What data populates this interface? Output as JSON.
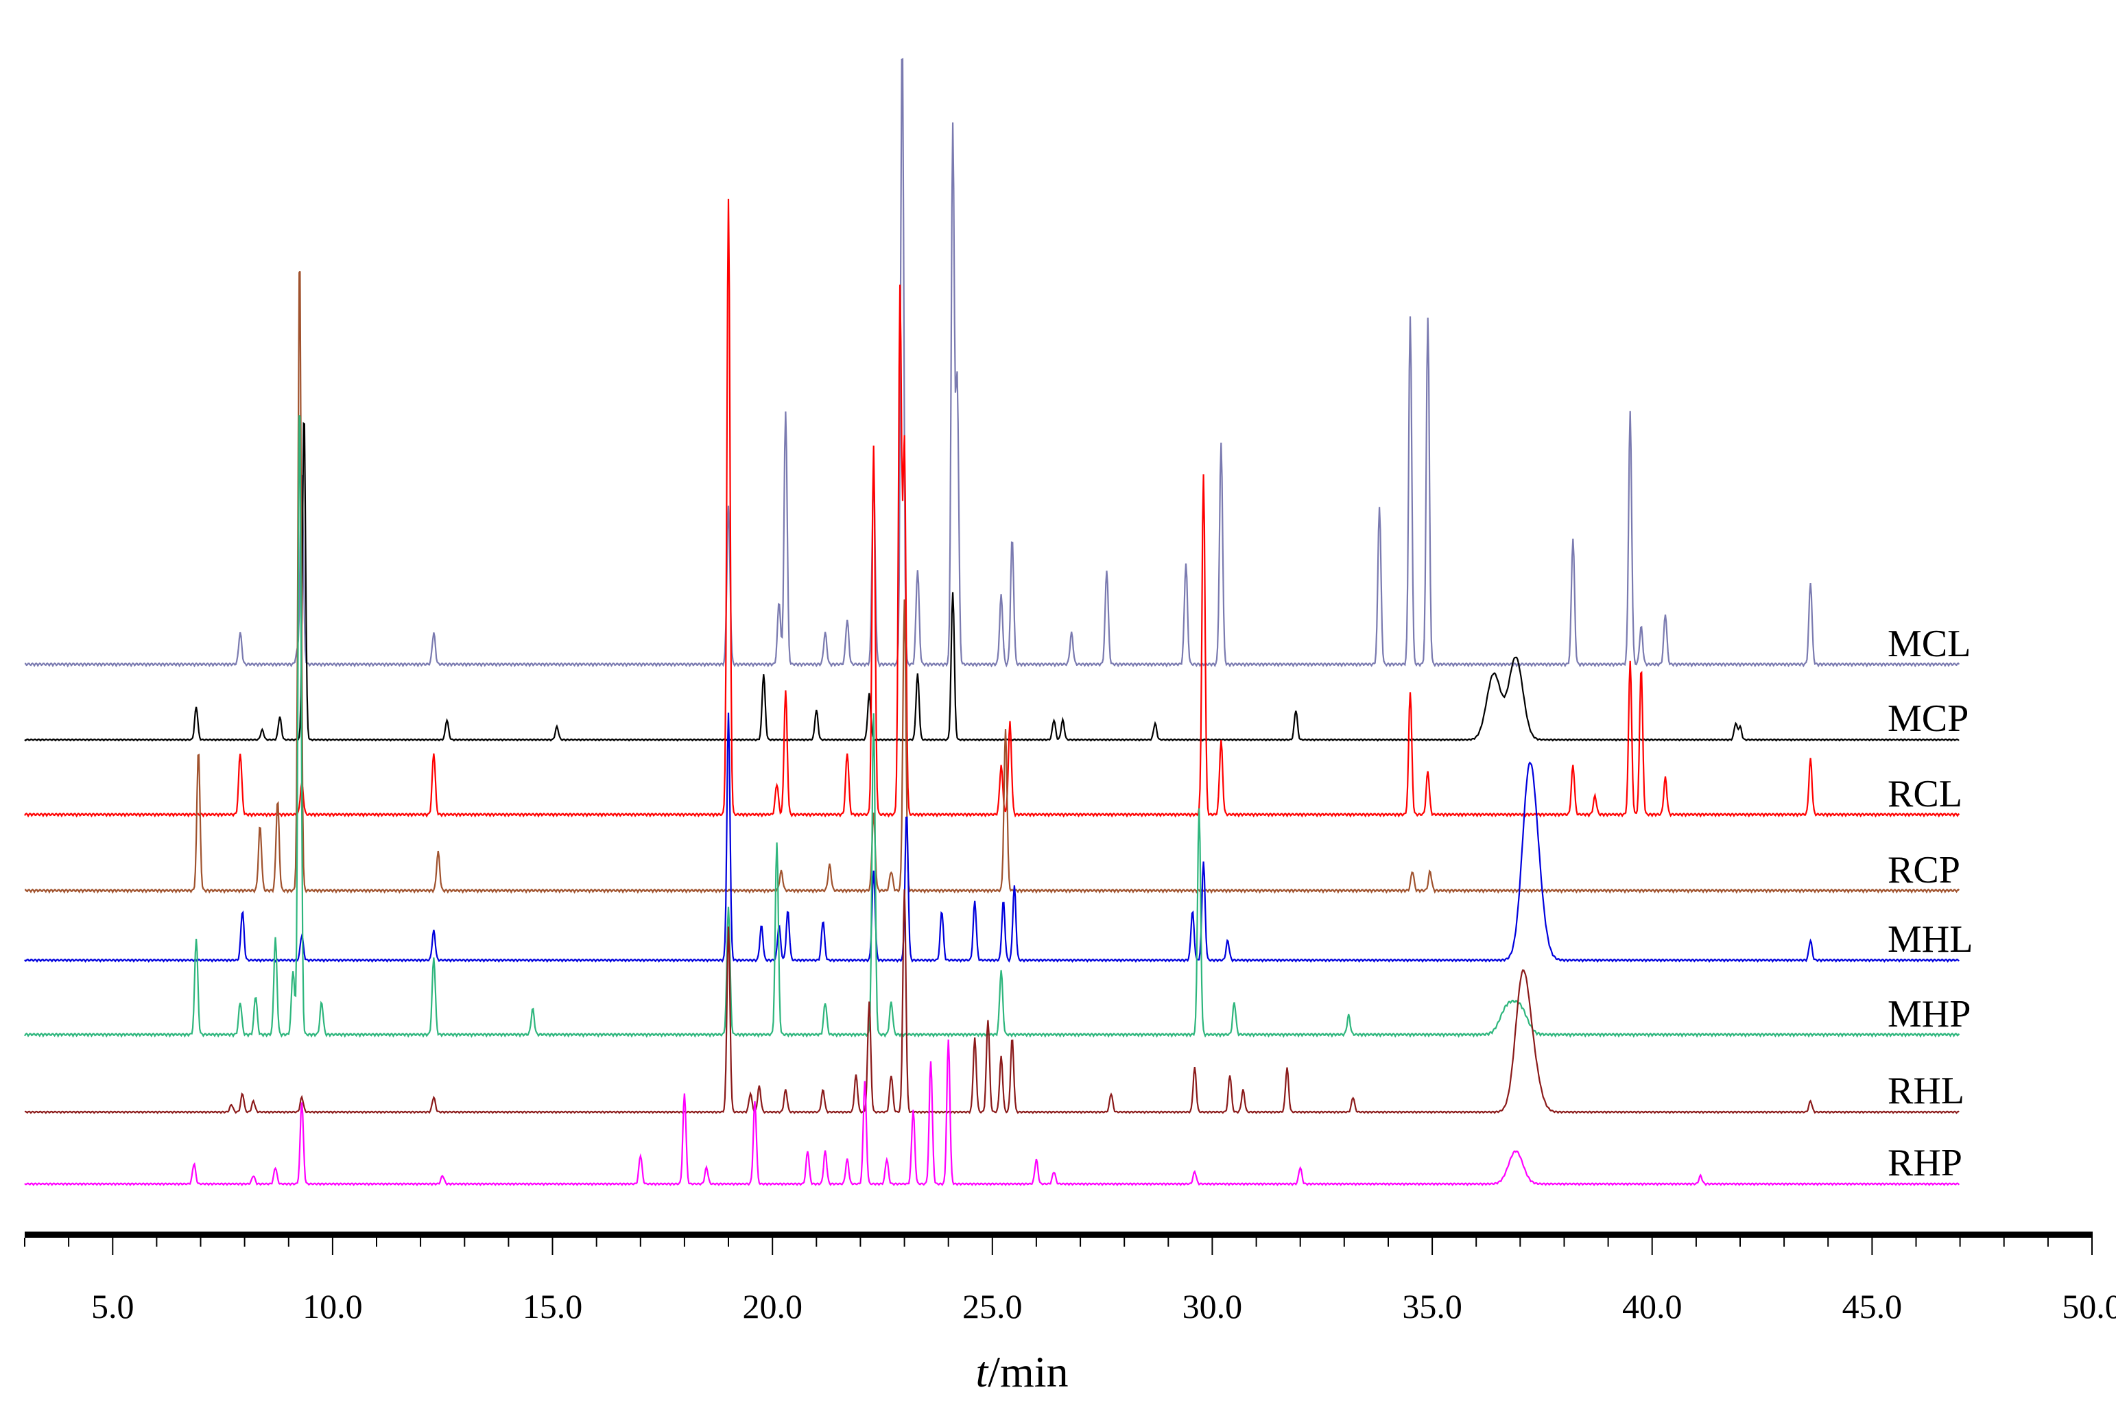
{
  "chart_data": {
    "type": "line",
    "title": "",
    "xlabel_italic": "t",
    "xlabel_rest": "/min",
    "xlim": [
      3,
      50
    ],
    "x_ticks": [
      "5.0",
      "10.0",
      "15.0",
      "20.0",
      "25.0",
      "30.0",
      "35.0",
      "40.0",
      "45.0",
      "50.0"
    ],
    "x_tick_values": [
      5,
      10,
      15,
      20,
      25,
      30,
      35,
      40,
      45,
      50
    ],
    "stacked": true,
    "grid": false,
    "y_axis_shown": false,
    "series": [
      {
        "name": "MCL",
        "color": "#7a7ab0",
        "peak_height_fraction": [
          0.05,
          0.02,
          0.05,
          0.25,
          0.1,
          0.05,
          1.0,
          0.3,
          0.07,
          0.11,
          0.2,
          0.15,
          0.85,
          0.45,
          0.35,
          0.55,
          0.55,
          0.2,
          0.4,
          0.06,
          0.13,
          0.4,
          0.3,
          0.05,
          0.15,
          0.25,
          0.16,
          0.08
        ],
        "peaks_min": [
          7.9,
          9.2,
          12.3,
          19.0,
          20.15,
          21.2,
          22.95,
          22.3,
          21.7,
          25.2,
          25.45,
          23.3,
          24.1,
          24.2,
          30.2,
          34.5,
          34.9,
          38.2,
          39.5,
          39.75,
          43.6,
          20.3,
          9.3,
          26.8,
          27.6,
          33.8,
          29.4,
          40.3
        ]
      },
      {
        "name": "MCP",
        "color": "#000000",
        "peaks_min": [
          6.9,
          8.4,
          8.8,
          9.35,
          12.6,
          15.1,
          19.8,
          21.0,
          22.2,
          23.3,
          24.1,
          26.4,
          26.6,
          28.7,
          31.9,
          36.4,
          36.9,
          41.9,
          42.0
        ],
        "peak_height_fraction": [
          0.1,
          0.03,
          0.07,
          1.0,
          0.06,
          0.04,
          0.2,
          0.09,
          0.14,
          0.2,
          0.45,
          0.06,
          0.06,
          0.05,
          0.09,
          0.2,
          0.25,
          0.05,
          0.04
        ]
      },
      {
        "name": "RCL",
        "color": "#ff0000",
        "peaks_min": [
          7.9,
          9.3,
          12.3,
          19.0,
          20.1,
          20.3,
          21.7,
          22.3,
          22.9,
          23.0,
          25.2,
          25.4,
          29.8,
          30.2,
          34.5,
          34.9,
          38.2,
          38.7,
          39.5,
          39.75,
          40.3,
          43.6
        ],
        "peak_height_fraction": [
          0.1,
          0.05,
          0.1,
          1.0,
          0.05,
          0.2,
          0.1,
          0.6,
          0.85,
          0.6,
          0.08,
          0.15,
          0.55,
          0.12,
          0.2,
          0.07,
          0.08,
          0.03,
          0.25,
          0.24,
          0.06,
          0.09
        ]
      },
      {
        "name": "RCP",
        "color": "#a0522d",
        "peaks_min": [
          6.95,
          8.35,
          8.75,
          9.25,
          12.4,
          20.2,
          21.3,
          22.3,
          22.7,
          23.0,
          25.3,
          34.55,
          34.95
        ],
        "peak_height_fraction": [
          0.22,
          0.1,
          0.14,
          1.0,
          0.06,
          0.03,
          0.04,
          0.12,
          0.03,
          0.45,
          0.25,
          0.03,
          0.03
        ]
      },
      {
        "name": "MHL",
        "color": "#0000dd",
        "peaks_min": [
          7.95,
          9.3,
          12.3,
          19.0,
          19.75,
          20.15,
          20.35,
          21.15,
          22.3,
          23.05,
          23.85,
          24.6,
          25.25,
          25.5,
          29.55,
          29.8,
          30.35,
          37.2,
          37.4,
          43.6
        ],
        "peak_height_fraction": [
          0.1,
          0.05,
          0.06,
          0.5,
          0.07,
          0.07,
          0.1,
          0.08,
          0.18,
          0.3,
          0.1,
          0.12,
          0.12,
          0.15,
          0.1,
          0.2,
          0.04,
          0.35,
          0.1,
          0.04
        ]
      },
      {
        "name": "MHP",
        "color": "#2eb67d",
        "peaks_min": [
          6.9,
          7.9,
          8.25,
          8.7,
          9.1,
          9.25,
          9.75,
          12.3,
          14.55,
          19.0,
          20.1,
          21.2,
          22.3,
          22.7,
          25.2,
          29.7,
          30.5,
          33.1,
          36.7,
          37.0
        ],
        "peak_height_fraction": [
          0.15,
          0.05,
          0.06,
          0.15,
          0.1,
          1.0,
          0.05,
          0.12,
          0.04,
          0.2,
          0.3,
          0.05,
          0.5,
          0.05,
          0.1,
          0.35,
          0.05,
          0.03,
          0.04,
          0.04
        ]
      },
      {
        "name": "RHL",
        "color": "#8b1a1a",
        "peaks_min": [
          7.7,
          7.95,
          8.2,
          9.3,
          12.3,
          19.0,
          19.5,
          19.7,
          20.3,
          21.15,
          21.9,
          22.2,
          22.7,
          23.0,
          24.6,
          24.9,
          25.2,
          25.45,
          27.7,
          29.6,
          30.4,
          30.7,
          31.7,
          33.2,
          37.05,
          37.3,
          43.6
        ],
        "peak_height_fraction": [
          0.02,
          0.05,
          0.03,
          0.04,
          0.04,
          0.5,
          0.05,
          0.07,
          0.06,
          0.06,
          0.1,
          0.3,
          0.1,
          0.6,
          0.2,
          0.25,
          0.15,
          0.2,
          0.05,
          0.12,
          0.1,
          0.06,
          0.12,
          0.04,
          0.35,
          0.1,
          0.03
        ]
      },
      {
        "name": "RHP",
        "color": "#ff00ff",
        "peaks_min": [
          6.85,
          8.2,
          8.7,
          9.3,
          12.5,
          17.0,
          18.0,
          18.5,
          19.6,
          20.8,
          21.2,
          21.7,
          22.1,
          22.6,
          23.2,
          23.6,
          24.0,
          26.0,
          26.4,
          29.6,
          32.0,
          36.9,
          41.1
        ],
        "peak_height_fraction": [
          0.05,
          0.02,
          0.04,
          0.2,
          0.02,
          0.07,
          0.22,
          0.04,
          0.2,
          0.08,
          0.08,
          0.06,
          0.25,
          0.06,
          0.18,
          0.3,
          0.35,
          0.06,
          0.03,
          0.03,
          0.04,
          0.08,
          0.02
        ]
      }
    ],
    "legend": "labels at right end of each trace"
  }
}
